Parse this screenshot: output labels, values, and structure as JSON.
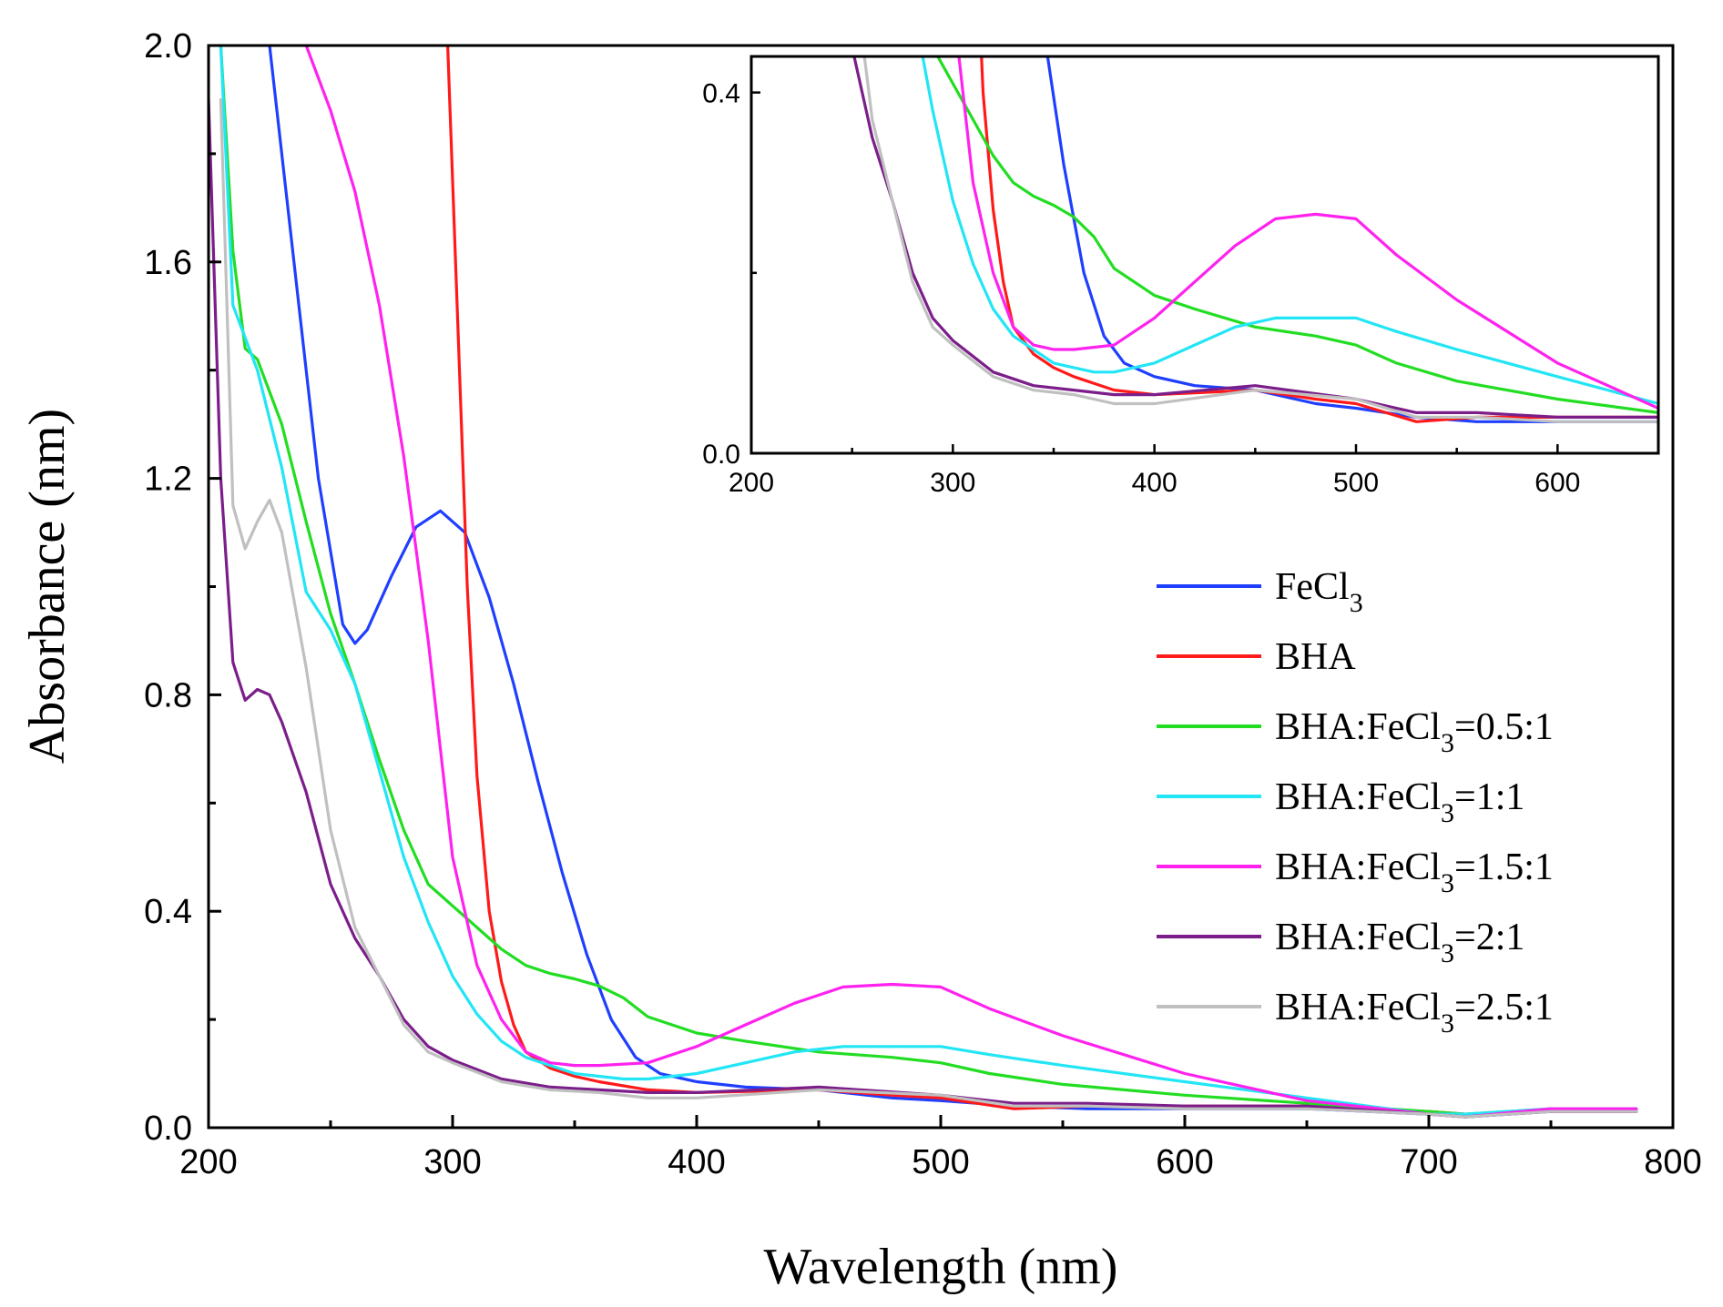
{
  "chart_data": {
    "type": "line",
    "xlabel": "Wavelength (nm)",
    "ylabel": "Absorbance (nm)",
    "xlim": [
      200,
      800
    ],
    "ylim": [
      0,
      2.0
    ],
    "xticks": [
      "200",
      "300",
      "400",
      "500",
      "600",
      "700",
      "800"
    ],
    "yticks": [
      "0.0",
      "0.4",
      "0.8",
      "1.2",
      "1.6",
      "2.0"
    ],
    "legend_position": "right-middle",
    "series": [
      {
        "name": "FeCl3",
        "label_main": "FeCl",
        "label_sub": "3",
        "label_rest": "",
        "color": "#1f3fff",
        "x": [
          225,
          235,
          245,
          255,
          260,
          265,
          275,
          285,
          295,
          305,
          315,
          325,
          335,
          345,
          355,
          365,
          375,
          385,
          400,
          420,
          450,
          480,
          500,
          530,
          560,
          600,
          650,
          700,
          715,
          750,
          785
        ],
        "y": [
          2.0,
          1.6,
          1.2,
          0.93,
          0.895,
          0.92,
          1.02,
          1.11,
          1.14,
          1.1,
          0.98,
          0.82,
          0.64,
          0.47,
          0.32,
          0.2,
          0.13,
          0.1,
          0.085,
          0.075,
          0.07,
          0.055,
          0.05,
          0.04,
          0.035,
          0.035,
          0.035,
          0.025,
          0.02,
          0.03,
          0.03
        ]
      },
      {
        "name": "BHA",
        "label_main": "BHA",
        "label_sub": "",
        "label_rest": "",
        "color": "#ff1a1a",
        "x": [
          298,
          302,
          306,
          310,
          315,
          320,
          325,
          330,
          340,
          350,
          360,
          380,
          400,
          450,
          480,
          500,
          530,
          560,
          600,
          650,
          700,
          715,
          750,
          785
        ],
        "y": [
          2.0,
          1.5,
          1.0,
          0.65,
          0.4,
          0.27,
          0.19,
          0.14,
          0.11,
          0.095,
          0.085,
          0.07,
          0.065,
          0.07,
          0.06,
          0.055,
          0.035,
          0.04,
          0.04,
          0.04,
          0.03,
          0.025,
          0.03,
          0.03
        ]
      },
      {
        "name": "BHA:FeCl3=0.5:1",
        "label_main": "BHA:FeCl",
        "label_sub": "3",
        "label_rest": "=0.5:1",
        "color": "#22dd22",
        "x": [
          205,
          210,
          215,
          220,
          230,
          240,
          250,
          260,
          270,
          280,
          290,
          300,
          310,
          320,
          330,
          340,
          350,
          360,
          370,
          380,
          400,
          420,
          450,
          480,
          500,
          520,
          550,
          600,
          650,
          700,
          715,
          750,
          785
        ],
        "y": [
          2.0,
          1.62,
          1.44,
          1.42,
          1.3,
          1.12,
          0.95,
          0.82,
          0.68,
          0.55,
          0.45,
          0.41,
          0.37,
          0.33,
          0.3,
          0.285,
          0.275,
          0.262,
          0.24,
          0.205,
          0.175,
          0.16,
          0.14,
          0.13,
          0.12,
          0.1,
          0.08,
          0.06,
          0.045,
          0.03,
          0.025,
          0.035,
          0.035
        ]
      },
      {
        "name": "BHA:FeCl3=1:1",
        "label_main": "BHA:FeCl",
        "label_sub": "3",
        "label_rest": "=1:1",
        "color": "#22e5f5",
        "x": [
          205,
          210,
          220,
          230,
          240,
          250,
          260,
          270,
          280,
          290,
          300,
          310,
          320,
          330,
          340,
          350,
          360,
          370,
          380,
          400,
          420,
          440,
          460,
          480,
          500,
          520,
          550,
          600,
          650,
          700,
          715,
          750,
          785
        ],
        "y": [
          2.0,
          1.52,
          1.4,
          1.22,
          0.99,
          0.92,
          0.82,
          0.66,
          0.5,
          0.38,
          0.28,
          0.21,
          0.16,
          0.13,
          0.115,
          0.1,
          0.095,
          0.09,
          0.09,
          0.1,
          0.12,
          0.14,
          0.15,
          0.15,
          0.15,
          0.135,
          0.115,
          0.085,
          0.055,
          0.025,
          0.025,
          0.035,
          0.035
        ]
      },
      {
        "name": "BHA:FeCl3=1.5:1",
        "label_main": "BHA:FeCl",
        "label_sub": "3",
        "label_rest": "=1.5:1",
        "color": "#ff22ee",
        "x": [
          240,
          250,
          260,
          270,
          280,
          290,
          300,
          310,
          320,
          330,
          340,
          350,
          360,
          380,
          400,
          420,
          440,
          460,
          480,
          500,
          520,
          550,
          600,
          650,
          700,
          715,
          750,
          785
        ],
        "y": [
          2.0,
          1.88,
          1.73,
          1.52,
          1.24,
          0.9,
          0.5,
          0.3,
          0.2,
          0.14,
          0.12,
          0.115,
          0.115,
          0.12,
          0.15,
          0.19,
          0.23,
          0.26,
          0.265,
          0.26,
          0.22,
          0.17,
          0.1,
          0.05,
          0.025,
          0.02,
          0.035,
          0.035
        ]
      },
      {
        "name": "BHA:FeCl3=2:1",
        "label_main": "BHA:FeCl",
        "label_sub": "3",
        "label_rest": "=2:1",
        "color": "#7b1e8a",
        "x": [
          200,
          205,
          210,
          215,
          220,
          225,
          230,
          240,
          250,
          260,
          270,
          280,
          290,
          300,
          320,
          340,
          360,
          380,
          400,
          450,
          500,
          530,
          560,
          600,
          650,
          700,
          715,
          750,
          785
        ],
        "y": [
          1.9,
          1.2,
          0.86,
          0.79,
          0.81,
          0.8,
          0.75,
          0.62,
          0.45,
          0.35,
          0.28,
          0.2,
          0.15,
          0.125,
          0.09,
          0.075,
          0.07,
          0.065,
          0.065,
          0.075,
          0.06,
          0.045,
          0.045,
          0.04,
          0.04,
          0.025,
          0.02,
          0.03,
          0.03
        ]
      },
      {
        "name": "BHA:FeCl3=2.5:1",
        "label_main": "BHA:FeCl",
        "label_sub": "3",
        "label_rest": "=2.5:1",
        "color": "#c0c0c0",
        "x": [
          205,
          210,
          215,
          220,
          225,
          230,
          240,
          250,
          260,
          270,
          280,
          290,
          300,
          320,
          340,
          360,
          380,
          400,
          450,
          500,
          530,
          560,
          600,
          650,
          700,
          715,
          750,
          785
        ],
        "y": [
          1.9,
          1.15,
          1.07,
          1.12,
          1.16,
          1.1,
          0.85,
          0.55,
          0.37,
          0.28,
          0.19,
          0.14,
          0.12,
          0.085,
          0.07,
          0.065,
          0.055,
          0.055,
          0.07,
          0.06,
          0.04,
          0.04,
          0.035,
          0.035,
          0.025,
          0.02,
          0.03,
          0.03
        ]
      }
    ],
    "inset": {
      "xlim": [
        200,
        650
      ],
      "ylim": [
        0,
        0.44
      ],
      "xticks": [
        "200",
        "300",
        "400",
        "500",
        "600"
      ],
      "yticks": [
        "0.0",
        "0.4"
      ]
    }
  }
}
